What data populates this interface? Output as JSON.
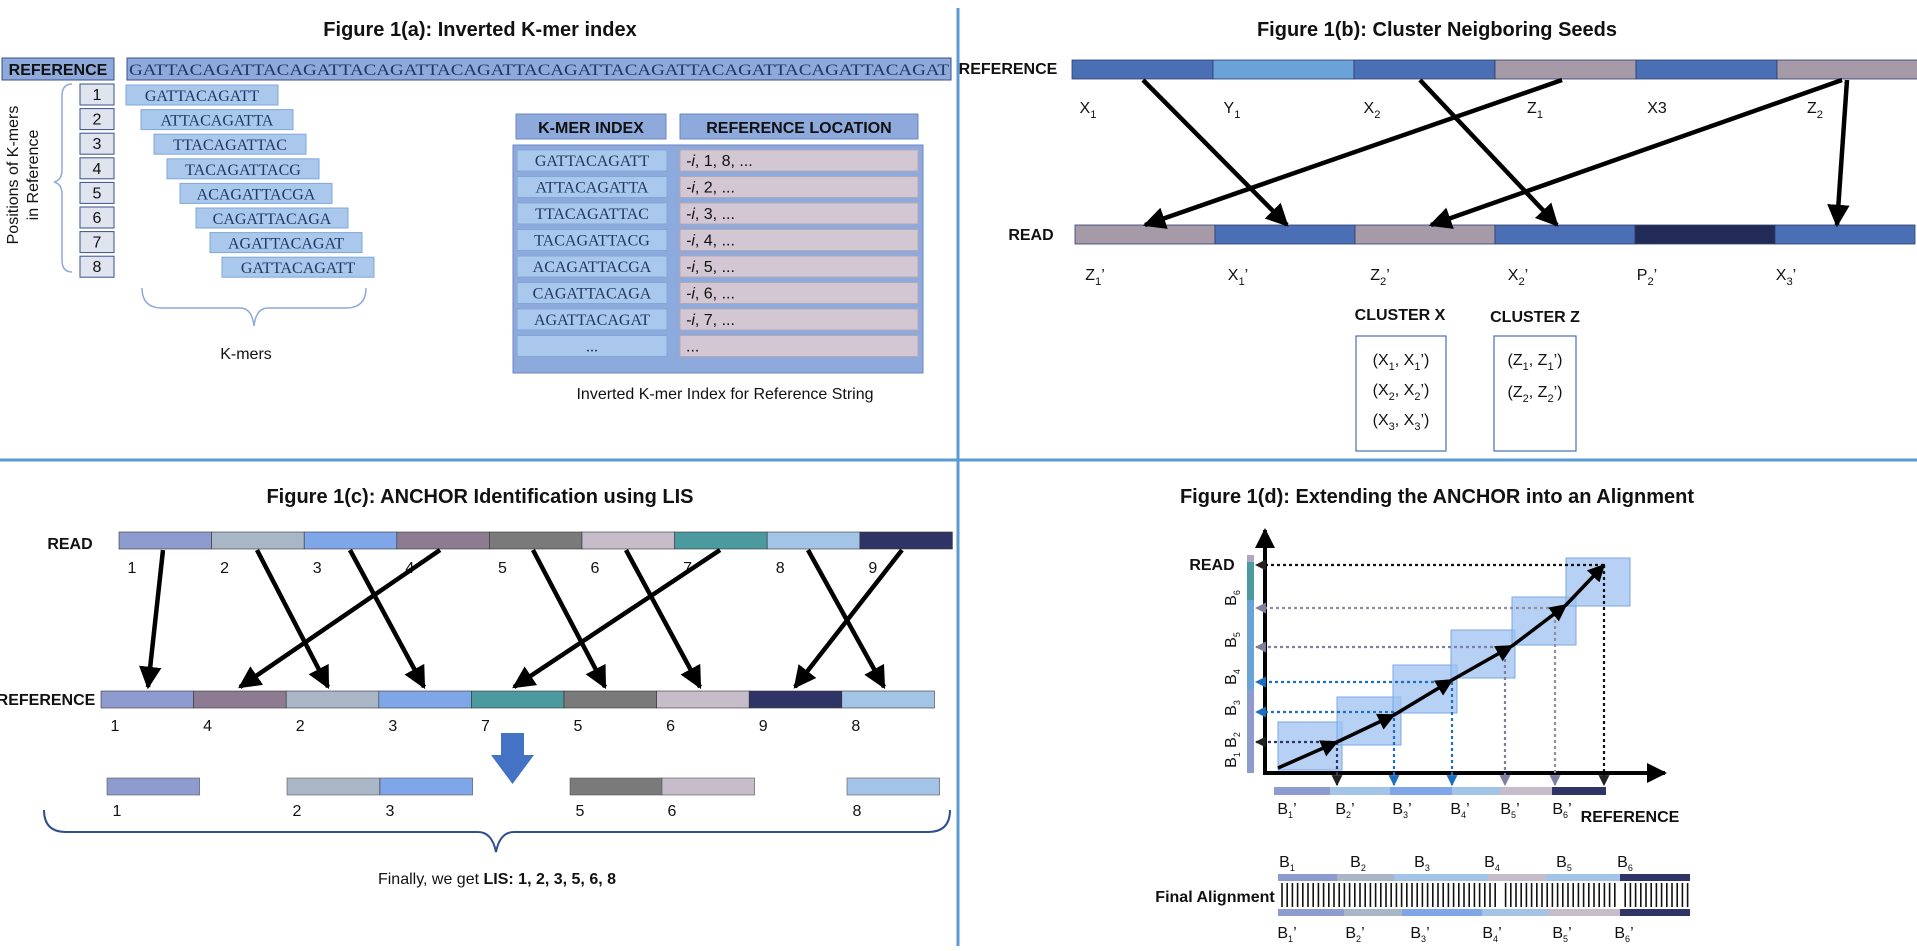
{
  "panel_a": {
    "title": "Figure 1(a): Inverted K-mer index",
    "reference_label": "REFERENCE",
    "reference_string": "GATTACAGATTACAGATTACAGATTACAGATTACAGATTACAGATTACAGATTACAGATTACAGAT",
    "positions": [
      "1",
      "2",
      "3",
      "4",
      "5",
      "6",
      "7",
      "8"
    ],
    "kmers": [
      "GATTACAGATT",
      "ATTACAGATTA",
      "TTACAGATTAC",
      "TACAGATTACG",
      "ACAGATTACGA",
      "CAGATTACAGA",
      "AGATTACAGAT",
      "GATTACAGATT"
    ],
    "positions_axis_line1": "Positions of K-mers",
    "positions_axis_line2": "in Reference",
    "kmers_label": "K-mers",
    "index_header": "K-MER INDEX",
    "location_header": "REFERENCE LOCATION",
    "index_rows": [
      {
        "kmer": "GATTACAGATT",
        "i": "-i",
        "loc": ", 1, 8, ..."
      },
      {
        "kmer": "ATTACAGATTA",
        "i": "-i",
        "loc": ", 2, ..."
      },
      {
        "kmer": "TTACAGATTAC",
        "i": "-i",
        "loc": ", 3, ..."
      },
      {
        "kmer": "TACAGATTACG",
        "i": "-i",
        "loc": ", 4, ..."
      },
      {
        "kmer": "ACAGATTACGA",
        "i": "-i",
        "loc": ", 5, ..."
      },
      {
        "kmer": "CAGATTACAGA",
        "i": "-i",
        "loc": ", 6, ..."
      },
      {
        "kmer": "AGATTACAGAT",
        "i": "-i",
        "loc": ", 7, ..."
      },
      {
        "kmer": "...",
        "i": "",
        "loc": "..."
      }
    ],
    "caption": "Inverted K-mer Index for Reference String"
  },
  "panel_b": {
    "title": "Figure 1(b): Cluster Neigboring Seeds",
    "reference_label": "REFERENCE",
    "read_label": "READ",
    "ref_labels": [
      {
        "base": "X",
        "sub": "1"
      },
      {
        "base": "Y",
        "sub": "1"
      },
      {
        "base": "X",
        "sub": "2"
      },
      {
        "base": "Z",
        "sub": "1"
      },
      {
        "base": "X3",
        "sub": ""
      },
      {
        "base": "Z",
        "sub": "2"
      }
    ],
    "read_labels": [
      {
        "base": "Z",
        "sub": "1",
        "prime": "’"
      },
      {
        "base": "X",
        "sub": "1",
        "prime": "’"
      },
      {
        "base": "Z",
        "sub": "2",
        "prime": "’"
      },
      {
        "base": "X",
        "sub": "2",
        "prime": "’"
      },
      {
        "base": "P",
        "sub": "2",
        "prime": "’"
      },
      {
        "base": "X",
        "sub": "3",
        "prime": "’"
      }
    ],
    "cluster_x_title": "CLUSTER X",
    "cluster_z_title": "CLUSTER Z",
    "cluster_x": [
      [
        "X",
        "1",
        "X",
        "1"
      ],
      [
        "X",
        "2",
        "X",
        "2"
      ],
      [
        "X",
        "3",
        "X",
        "3"
      ]
    ],
    "cluster_z": [
      [
        "Z",
        "1",
        "Z",
        "1"
      ],
      [
        "Z",
        "2",
        "Z",
        "2"
      ]
    ],
    "colors": {
      "blue": "#4a6fb5",
      "light_blue": "#6aa3d8",
      "mauve": "#a79aa8",
      "navy": "#222a56"
    }
  },
  "panel_c": {
    "title": "Figure 1(c): ANCHOR Identification using LIS",
    "read_label": "READ",
    "reference_label": "REFERENCE",
    "read_numbers": [
      "1",
      "2",
      "3",
      "4",
      "5",
      "6",
      "7",
      "8",
      "9"
    ],
    "ref_numbers": [
      "1",
      "4",
      "2",
      "3",
      "7",
      "5",
      "6",
      "9",
      "8"
    ],
    "lis_numbers": [
      "1",
      "2",
      "3",
      "5",
      "6",
      "8"
    ],
    "result_prefix": "Finally, we get ",
    "result_bold": "LIS:",
    "result_values": " 1, 2, 3, 5, 6, 8"
  },
  "panel_d": {
    "title": "Figure 1(d): Extending the ANCHOR into an Alignment",
    "read_label": "READ",
    "reference_label": "REFERENCE",
    "y_labels": [
      "B1",
      "B2",
      "B3",
      "B4",
      "B5",
      "B6"
    ],
    "x_labels": [
      "B1’",
      "B2’",
      "B3’",
      "B4’",
      "B5’",
      "B6’"
    ],
    "final_alignment_label": "Final Alignment"
  }
}
